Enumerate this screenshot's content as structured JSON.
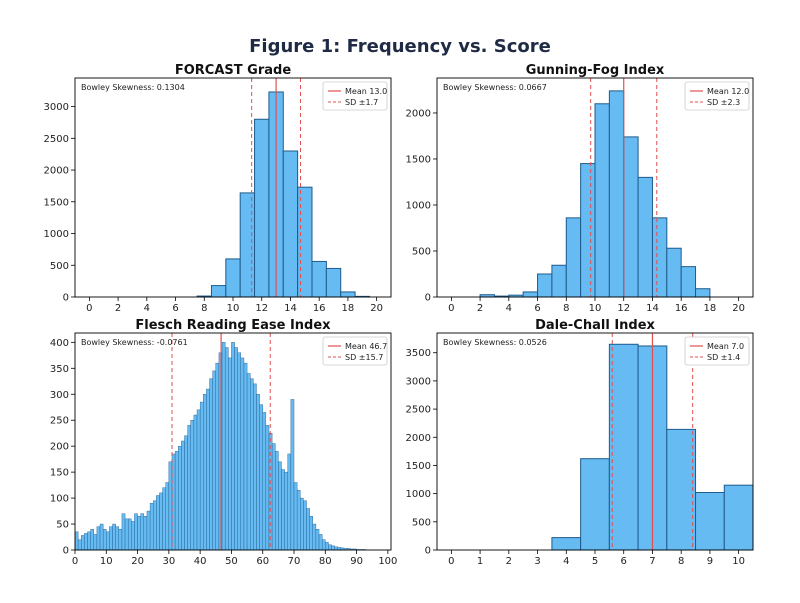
{
  "figure_title": "Figure 1: Frequency vs. Score",
  "colors": {
    "bar_fill": "#66bbf2",
    "bar_edge": "#1f5b8c",
    "mean_line": "#e05050",
    "sd_line": "#e05050"
  },
  "chart_data": [
    {
      "type": "bar",
      "title": "FORCAST Grade",
      "annotation": "Bowley Skewness: 0.1304",
      "legend": {
        "placement": "top-right",
        "mean_label": "Mean 13.0",
        "sd_label": "SD ±1.7"
      },
      "mean": 13.0,
      "sd": 1.7,
      "xlim": [
        -1,
        21
      ],
      "ylim": [
        0,
        3450
      ],
      "xticks": [
        0,
        2,
        4,
        6,
        8,
        10,
        12,
        14,
        16,
        18,
        20
      ],
      "yticks": [
        0,
        500,
        1000,
        1500,
        2000,
        2500,
        3000
      ],
      "bin_width": 1,
      "bins": [
        [
          8,
          15
        ],
        [
          9,
          180
        ],
        [
          10,
          600
        ],
        [
          11,
          1640
        ],
        [
          12,
          2800
        ],
        [
          13,
          3230
        ],
        [
          14,
          2300
        ],
        [
          15,
          1730
        ],
        [
          16,
          560
        ],
        [
          17,
          450
        ],
        [
          18,
          80
        ],
        [
          19,
          10
        ]
      ]
    },
    {
      "type": "bar",
      "title": "Gunning-Fog Index",
      "annotation": "Bowley Skewness: 0.0667",
      "legend": {
        "placement": "top-right",
        "mean_label": "Mean 12.0",
        "sd_label": "SD ±2.3"
      },
      "mean": 12.0,
      "sd": 2.3,
      "xlim": [
        -1,
        21
      ],
      "ylim": [
        0,
        2380
      ],
      "xticks": [
        0,
        2,
        4,
        6,
        8,
        10,
        12,
        14,
        16,
        18,
        20
      ],
      "yticks": [
        0,
        500,
        1000,
        1500,
        2000
      ],
      "bin_width": 1,
      "bins": [
        [
          2.5,
          25
        ],
        [
          3.5,
          10
        ],
        [
          4.5,
          20
        ],
        [
          5.5,
          55
        ],
        [
          6.5,
          250
        ],
        [
          7.5,
          345
        ],
        [
          8.5,
          860
        ],
        [
          9.5,
          1450
        ],
        [
          10.5,
          2100
        ],
        [
          11.5,
          2240
        ],
        [
          12.5,
          1740
        ],
        [
          13.5,
          1300
        ],
        [
          14.5,
          860
        ],
        [
          15.5,
          530
        ],
        [
          16.5,
          330
        ],
        [
          17.5,
          90
        ]
      ]
    },
    {
      "type": "bar",
      "title": "Flesch Reading Ease Index",
      "annotation": "Bowley Skewness: -0.0761",
      "legend": {
        "placement": "top-right",
        "mean_label": "Mean 46.7",
        "sd_label": "SD ±15.7"
      },
      "mean": 46.7,
      "sd": 15.7,
      "xlim": [
        0,
        101
      ],
      "ylim": [
        0,
        418
      ],
      "xticks": [
        0,
        10,
        20,
        30,
        40,
        50,
        60,
        70,
        80,
        90,
        100
      ],
      "yticks": [
        0,
        50,
        100,
        150,
        200,
        250,
        300,
        350,
        400
      ],
      "bin_width": 1,
      "values": [
        35,
        20,
        28,
        32,
        35,
        40,
        30,
        45,
        50,
        40,
        35,
        45,
        50,
        45,
        40,
        70,
        60,
        60,
        55,
        70,
        65,
        70,
        65,
        75,
        90,
        95,
        105,
        110,
        120,
        130,
        170,
        185,
        190,
        200,
        210,
        220,
        240,
        250,
        260,
        270,
        285,
        300,
        310,
        330,
        345,
        360,
        380,
        400,
        390,
        370,
        400,
        390,
        380,
        370,
        360,
        340,
        330,
        320,
        300,
        280,
        265,
        240,
        225,
        205,
        190,
        170,
        155,
        150,
        185,
        290,
        130,
        115,
        100,
        95,
        80,
        65,
        50,
        40,
        30,
        20,
        15,
        10,
        8,
        6,
        5,
        4,
        3,
        3,
        2,
        2,
        1,
        1,
        1,
        0,
        0,
        0,
        0,
        0,
        0,
        0
      ]
    },
    {
      "type": "bar",
      "title": "Dale-Chall Index",
      "annotation": "Bowley Skewness: 0.0526",
      "legend": {
        "placement": "top-right",
        "mean_label": "Mean 7.0",
        "sd_label": "SD ±1.4"
      },
      "mean": 7.0,
      "sd": 1.4,
      "xlim": [
        -0.5,
        10.5
      ],
      "ylim": [
        0,
        3850
      ],
      "xticks": [
        0,
        1,
        2,
        3,
        4,
        5,
        6,
        7,
        8,
        9,
        10
      ],
      "yticks": [
        0,
        500,
        1000,
        1500,
        2000,
        2500,
        3000,
        3500
      ],
      "bin_width": 1,
      "bins": [
        [
          4,
          220
        ],
        [
          5,
          1620
        ],
        [
          6,
          3650
        ],
        [
          7,
          3620
        ],
        [
          8,
          2140
        ],
        [
          9,
          1020
        ],
        [
          10,
          1150
        ]
      ]
    }
  ]
}
